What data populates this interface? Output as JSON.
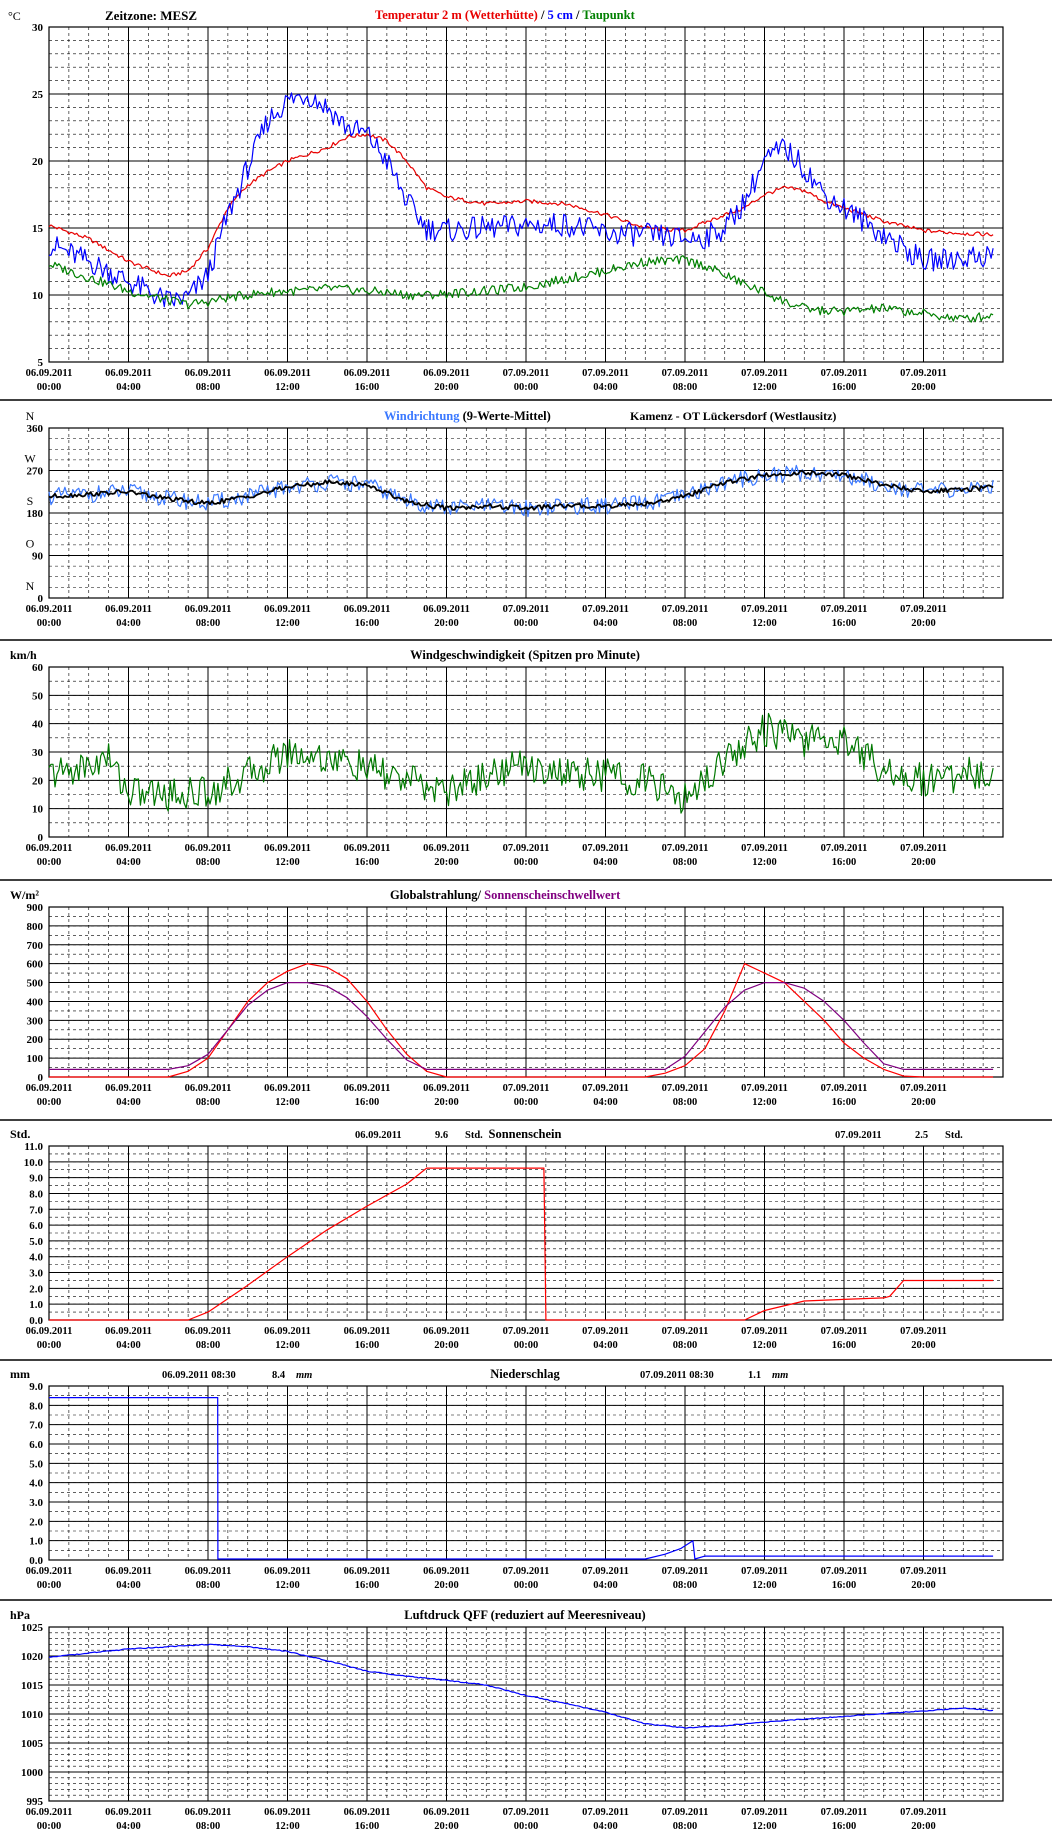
{
  "x_ticks": [
    [
      "06.09.2011",
      "00:00"
    ],
    [
      "06.09.2011",
      "04:00"
    ],
    [
      "06.09.2011",
      "08:00"
    ],
    [
      "06.09.2011",
      "12:00"
    ],
    [
      "06.09.2011",
      "16:00"
    ],
    [
      "06.09.2011",
      "20:00"
    ],
    [
      "07.09.2011",
      "00:00"
    ],
    [
      "07.09.2011",
      "04:00"
    ],
    [
      "07.09.2011",
      "08:00"
    ],
    [
      "07.09.2011",
      "12:00"
    ],
    [
      "07.09.2011",
      "16:00"
    ],
    [
      "07.09.2011",
      "20:00"
    ]
  ],
  "chart_data": [
    {
      "type": "line",
      "unit": "°C",
      "timezone_label": "Zeitzone: MESZ",
      "title_parts": [
        {
          "text": "Temperatur 2 m (Wetterhütte)",
          "color": "#e80000"
        },
        {
          "text": "  /  ",
          "color": "#000000"
        },
        {
          "text": "5 cm",
          "color": "#0000ff"
        },
        {
          "text": " / ",
          "color": "#000000"
        },
        {
          "text": "Taupunkt",
          "color": "#008000"
        }
      ],
      "ylim": [
        5,
        30
      ],
      "yticks": [
        5,
        10,
        15,
        20,
        25,
        30
      ],
      "x_hours": [
        0,
        2,
        4,
        6,
        7,
        8,
        9,
        10,
        11,
        12,
        13,
        14,
        15,
        16,
        17,
        18,
        19,
        20,
        22,
        24,
        26,
        28,
        30,
        32,
        33,
        34,
        35,
        36,
        37,
        38,
        39,
        40,
        42,
        44,
        46,
        47.5
      ],
      "series": [
        {
          "name": "Temperatur 2 m (Wetterhütte)",
          "color": "#e80000",
          "values": [
            15.2,
            14.2,
            12.5,
            11.4,
            11.8,
            13.5,
            16.5,
            18.2,
            19.2,
            20,
            20.5,
            21,
            21.8,
            22,
            21.5,
            20,
            18,
            17.3,
            16.8,
            17,
            16.8,
            16,
            15,
            14.8,
            15.4,
            16,
            16.5,
            17.5,
            18,
            17.8,
            17,
            16.5,
            15.5,
            14.8,
            14.6,
            14.5
          ]
        },
        {
          "name": "5 cm",
          "color": "#0000ff",
          "values": [
            13.8,
            12.5,
            11,
            9.5,
            9.8,
            11.5,
            16,
            19.5,
            23,
            24.5,
            25,
            24,
            22.5,
            22,
            20,
            17,
            15,
            14.8,
            15,
            15.2,
            15.3,
            14.6,
            14.5,
            14.2,
            14.3,
            15,
            17,
            20,
            21,
            19.5,
            17.5,
            16.5,
            14.5,
            12.5,
            12.8,
            13
          ]
        },
        {
          "name": "Taupunkt",
          "color": "#008000",
          "values": [
            12.3,
            11.3,
            10.3,
            9.6,
            9.3,
            9.5,
            9.8,
            10,
            10.2,
            10.3,
            10.3,
            10.5,
            10.4,
            10.3,
            10.2,
            10,
            10,
            10.1,
            10.3,
            10.6,
            11.2,
            11.8,
            12.5,
            12.6,
            12.2,
            11.5,
            10.8,
            10.2,
            9.5,
            9,
            8.8,
            8.8,
            9,
            8.6,
            8.2,
            8.5
          ]
        }
      ]
    },
    {
      "type": "line",
      "unit_letters": [
        "N",
        "W",
        "S",
        "O",
        "N"
      ],
      "title_parts": [
        {
          "text": "Windrichtung",
          "color": "#3a78ff"
        },
        {
          "text": " (9-Werte-Mittel)",
          "color": "#000000"
        }
      ],
      "location": "Kamenz - OT Lückersdorf (Westlausitz)",
      "ylim": [
        0,
        360
      ],
      "yticks": [
        0,
        90,
        180,
        270,
        360
      ],
      "x_hours": [
        0,
        2,
        4,
        6,
        8,
        10,
        12,
        14,
        16,
        18,
        20,
        22,
        24,
        26,
        28,
        30,
        32,
        34,
        36,
        38,
        40,
        42,
        44,
        46,
        47.5
      ],
      "series": [
        {
          "name": "Windrichtung",
          "color": "#3a78ff",
          "values": [
            215,
            220,
            225,
            210,
            200,
            215,
            235,
            245,
            240,
            205,
            190,
            195,
            190,
            195,
            195,
            200,
            215,
            245,
            260,
            265,
            260,
            240,
            225,
            230,
            235
          ]
        },
        {
          "name": "9-Werte-Mittel",
          "color": "#000000",
          "values": [
            215,
            220,
            225,
            210,
            200,
            215,
            235,
            245,
            240,
            205,
            190,
            195,
            190,
            195,
            195,
            200,
            215,
            245,
            260,
            265,
            260,
            240,
            225,
            230,
            235
          ]
        }
      ]
    },
    {
      "type": "line",
      "unit": "km/h",
      "title": "Windgeschwindigkeit (Spitzen pro Minute)",
      "ylim": [
        0,
        60
      ],
      "yticks": [
        0,
        10,
        20,
        30,
        40,
        50,
        60
      ],
      "x_hours": [
        0,
        2,
        3,
        4,
        6,
        8,
        10,
        12,
        14,
        16,
        18,
        20,
        22,
        24,
        26,
        28,
        30,
        32,
        34,
        36,
        38,
        40,
        42,
        44,
        46,
        47.5
      ],
      "series": [
        {
          "name": "Windgeschwindigkeit",
          "color": "#007800",
          "values": [
            22,
            25,
            28,
            16,
            15,
            16,
            22,
            30,
            28,
            24,
            20,
            16,
            22,
            26,
            22,
            22,
            20,
            13,
            28,
            38,
            34,
            35,
            24,
            20,
            22,
            23
          ]
        }
      ]
    },
    {
      "type": "line",
      "unit": "W/m²",
      "title_parts": [
        {
          "text": "Globalstrahlung/ ",
          "color": "#000000"
        },
        {
          "text": "Sonnenscheinschwellwert",
          "color": "#800080"
        }
      ],
      "ylim": [
        0,
        900
      ],
      "yticks": [
        0,
        100,
        200,
        300,
        400,
        500,
        600,
        700,
        800,
        900
      ],
      "x_hours": [
        0,
        6,
        7,
        8,
        9,
        10,
        11,
        12,
        13,
        14,
        15,
        16,
        17,
        18,
        19,
        20,
        24,
        30,
        31,
        32,
        33,
        34,
        35,
        36,
        37,
        38,
        39,
        40,
        41,
        42,
        43,
        44,
        47.5
      ],
      "series": [
        {
          "name": "Globalstrahlung",
          "color": "#ff0000",
          "values": [
            0,
            0,
            30,
            100,
            250,
            400,
            500,
            560,
            600,
            580,
            520,
            400,
            250,
            120,
            30,
            0,
            0,
            0,
            20,
            60,
            150,
            350,
            600,
            550,
            500,
            400,
            300,
            180,
            100,
            40,
            5,
            0,
            0
          ]
        },
        {
          "name": "Sonnenscheinschwellwert",
          "color": "#800080",
          "values": [
            40,
            40,
            60,
            120,
            250,
            380,
            460,
            500,
            500,
            480,
            420,
            320,
            200,
            90,
            40,
            40,
            40,
            40,
            40,
            110,
            240,
            370,
            460,
            500,
            500,
            470,
            400,
            300,
            180,
            70,
            40,
            40,
            40
          ]
        }
      ]
    },
    {
      "type": "line",
      "unit": "Std.",
      "title": "Sonnenschein",
      "annotations": [
        {
          "date": "06.09.2011",
          "value": "9.6",
          "unit": "Std."
        },
        {
          "date": "07.09.2011",
          "value": "2.5",
          "unit": "Std."
        }
      ],
      "ylim": [
        0,
        11
      ],
      "yticks": [
        0,
        1,
        2,
        3,
        4,
        5,
        6,
        7,
        8,
        9,
        10,
        11
      ],
      "x_hours": [
        0,
        7,
        8,
        10,
        12,
        14,
        16,
        18,
        19,
        24.9,
        25,
        35,
        36,
        38,
        40,
        42,
        42.3,
        43,
        47.5
      ],
      "series": [
        {
          "name": "Sonnenschein",
          "color": "#ff0000",
          "values": [
            0,
            0,
            0.5,
            2.2,
            4,
            5.7,
            7.2,
            8.6,
            9.6,
            9.6,
            0,
            0,
            0.6,
            1.2,
            1.3,
            1.4,
            1.5,
            2.5,
            2.5
          ]
        }
      ]
    },
    {
      "type": "line",
      "unit": "mm",
      "title": "Niederschlag",
      "annotations": [
        {
          "date": "06.09.2011 08:30",
          "value": "8.4",
          "unit": "mm"
        },
        {
          "date": "07.09.2011 08:30",
          "value": "1.1",
          "unit": "mm"
        }
      ],
      "ylim": [
        0,
        9
      ],
      "yticks": [
        0,
        1,
        2,
        3,
        4,
        5,
        6,
        7,
        8,
        9
      ],
      "x_hours": [
        0,
        8.49,
        8.5,
        30,
        31,
        31.8,
        32.4,
        32.5,
        33,
        47.5
      ],
      "series": [
        {
          "name": "Niederschlag",
          "color": "#0000ff",
          "values": [
            8.4,
            8.4,
            0.05,
            0.05,
            0.3,
            0.6,
            1.0,
            0.05,
            0.2,
            0.2
          ]
        }
      ]
    },
    {
      "type": "line",
      "unit": "hPa",
      "title": "Luftdruck QFF (reduziert auf Meeresniveau)",
      "ylim": [
        995,
        1025
      ],
      "yticks": [
        995,
        1000,
        1005,
        1010,
        1015,
        1020,
        1025
      ],
      "x_hours": [
        0,
        4,
        8,
        10,
        12,
        14,
        16,
        18,
        20,
        22,
        24,
        26,
        28,
        30,
        32,
        34,
        36,
        38,
        40,
        42,
        44,
        46,
        47.5
      ],
      "series": [
        {
          "name": "Luftdruck QFF",
          "color": "#0000ff",
          "values": [
            1019.8,
            1021.2,
            1022,
            1021.6,
            1020.8,
            1019.2,
            1017.4,
            1016.5,
            1015.8,
            1015,
            1013.2,
            1011.8,
            1010.3,
            1008.3,
            1007.6,
            1008.0,
            1008.6,
            1009.1,
            1009.6,
            1010.1,
            1010.5,
            1011.0,
            1010.6
          ]
        }
      ]
    }
  ]
}
